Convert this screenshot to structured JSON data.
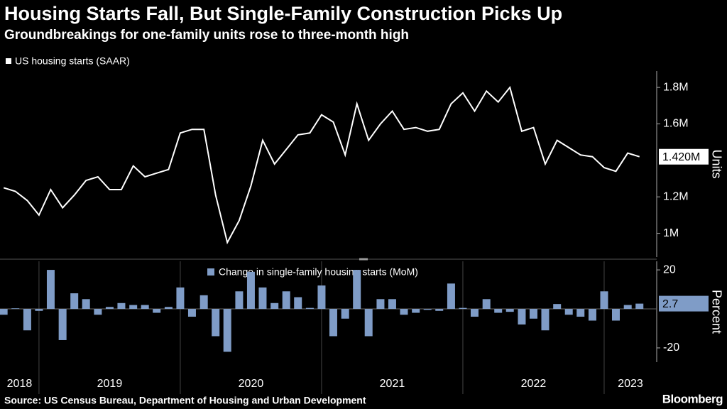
{
  "title": "Housing Starts Fall, But Single-Family Construction Picks Up",
  "subtitle": "Groundbreakings for one-family units rose to three-month high",
  "source": "Source: US Census Bureau, Department of Housing and Urban Development",
  "brand": "Bloomberg",
  "chart_data": [
    {
      "type": "line",
      "x": [
        2018.75,
        2018.833,
        2018.917,
        2019,
        2019.083,
        2019.167,
        2019.25,
        2019.333,
        2019.417,
        2019.5,
        2019.583,
        2019.667,
        2019.75,
        2019.833,
        2019.917,
        2020,
        2020.083,
        2020.167,
        2020.25,
        2020.333,
        2020.417,
        2020.5,
        2020.583,
        2020.667,
        2020.75,
        2020.833,
        2020.917,
        2021,
        2021.083,
        2021.167,
        2021.25,
        2021.333,
        2021.417,
        2021.5,
        2021.583,
        2021.667,
        2021.75,
        2021.833,
        2021.917,
        2022,
        2022.083,
        2022.167,
        2022.25,
        2022.333,
        2022.417,
        2022.5,
        2022.583,
        2022.667,
        2022.75,
        2022.833,
        2022.917,
        2023,
        2023.083,
        2023.167,
        2023.25
      ],
      "xlim": [
        2018.724,
        2023.372
      ],
      "ylim": [
        0.87,
        1.89
      ],
      "yticks": [
        {
          "value": 1,
          "label": "1M"
        },
        {
          "value": 1.2,
          "label": "1.2M"
        },
        {
          "value": 1.6,
          "label": "1.6M"
        },
        {
          "value": 1.8,
          "label": "1.8M"
        }
      ],
      "y_label": "Units",
      "series": [
        {
          "name": "US housing starts (SAAR)",
          "color": "#ffffff",
          "values": [
            1.25,
            1.23,
            1.18,
            1.1,
            1.24,
            1.14,
            1.21,
            1.29,
            1.31,
            1.24,
            1.24,
            1.37,
            1.31,
            1.33,
            1.35,
            1.55,
            1.57,
            1.57,
            1.21,
            0.95,
            1.07,
            1.26,
            1.51,
            1.38,
            1.46,
            1.54,
            1.55,
            1.65,
            1.61,
            1.43,
            1.71,
            1.51,
            1.6,
            1.67,
            1.57,
            1.58,
            1.56,
            1.57,
            1.71,
            1.77,
            1.67,
            1.78,
            1.72,
            1.8,
            1.56,
            1.58,
            1.38,
            1.51,
            1.47,
            1.43,
            1.42,
            1.36,
            1.34,
            1.44,
            1.42
          ],
          "value_labels": [
            null,
            null,
            null,
            null,
            null,
            null,
            null,
            null,
            null,
            null,
            null,
            null,
            null,
            null,
            null,
            null,
            null,
            null,
            null,
            null,
            null,
            null,
            null,
            null,
            null,
            null,
            null,
            null,
            null,
            null,
            null,
            null,
            null,
            null,
            null,
            null,
            null,
            null,
            null,
            null,
            null,
            null,
            null,
            null,
            null,
            null,
            null,
            null,
            null,
            null,
            null,
            null,
            null,
            null,
            "1.420M"
          ]
        }
      ]
    },
    {
      "type": "bar",
      "x": [
        2018.75,
        2018.833,
        2018.917,
        2019,
        2019.083,
        2019.167,
        2019.25,
        2019.333,
        2019.417,
        2019.5,
        2019.583,
        2019.667,
        2019.75,
        2019.833,
        2019.917,
        2020,
        2020.083,
        2020.167,
        2020.25,
        2020.333,
        2020.417,
        2020.5,
        2020.583,
        2020.667,
        2020.75,
        2020.833,
        2020.917,
        2021,
        2021.083,
        2021.167,
        2021.25,
        2021.333,
        2021.417,
        2021.5,
        2021.583,
        2021.667,
        2021.75,
        2021.833,
        2021.917,
        2022,
        2022.083,
        2022.167,
        2022.25,
        2022.333,
        2022.417,
        2022.5,
        2022.583,
        2022.667,
        2022.75,
        2022.833,
        2022.917,
        2023,
        2023.083,
        2023.167,
        2023.25
      ],
      "xlim": [
        2018.724,
        2023.372
      ],
      "xticks": [
        {
          "value": 2018,
          "label": "2018"
        },
        {
          "value": 2019,
          "label": "2019"
        },
        {
          "value": 2020,
          "label": "2020"
        },
        {
          "value": 2021,
          "label": "2021"
        },
        {
          "value": 2022,
          "label": "2022"
        },
        {
          "value": 2023,
          "label": "2023"
        }
      ],
      "ylim": [
        -27.3,
        24.4
      ],
      "yticks": [
        -20,
        20
      ],
      "y_label": "Percent",
      "series": [
        {
          "name": "Change in single-family housing starts (MoM)",
          "color": "#7f9cc7",
          "values": [
            -3,
            0.3,
            -11,
            -1,
            20,
            -16,
            8,
            5,
            -3,
            1,
            3,
            2,
            2,
            -2,
            1,
            11,
            -4,
            7,
            -14,
            -22,
            9,
            19,
            11,
            3,
            9,
            6,
            0.5,
            12,
            -14,
            -5,
            20,
            -14,
            5,
            5,
            -3,
            -2,
            -0.5,
            -1,
            13,
            0.5,
            -4,
            5,
            -2,
            -1.5,
            -8,
            -5,
            -11,
            2.5,
            -3,
            -4,
            -6,
            9,
            -6,
            2,
            2.7
          ],
          "value_labels": [
            null,
            null,
            null,
            null,
            null,
            null,
            null,
            null,
            null,
            null,
            null,
            null,
            null,
            null,
            null,
            null,
            null,
            null,
            null,
            null,
            null,
            null,
            null,
            null,
            null,
            null,
            null,
            null,
            null,
            null,
            null,
            null,
            null,
            null,
            null,
            null,
            null,
            null,
            null,
            null,
            null,
            null,
            null,
            null,
            null,
            null,
            null,
            null,
            null,
            null,
            null,
            null,
            null,
            null,
            "2.7"
          ]
        }
      ]
    }
  ]
}
